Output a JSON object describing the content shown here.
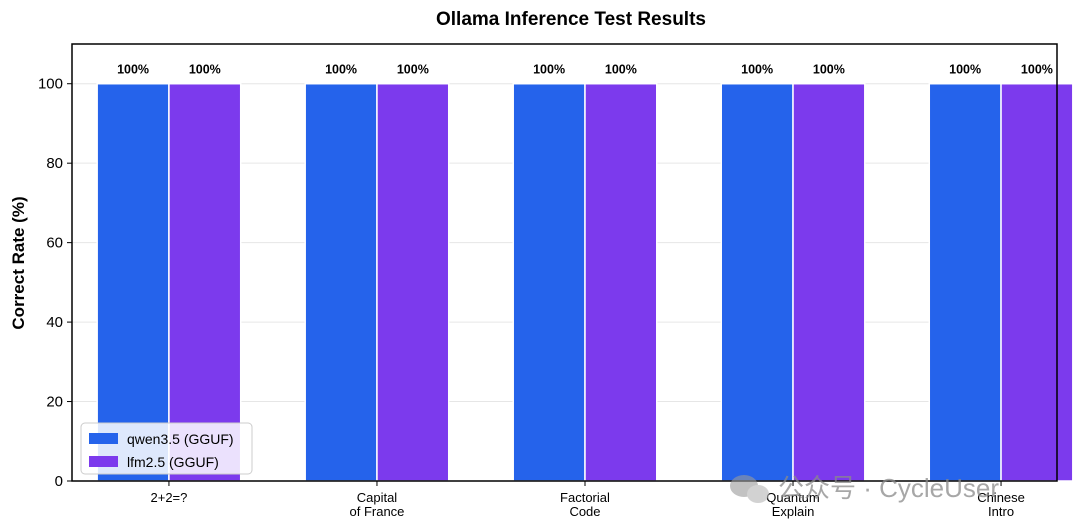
{
  "chart_data": {
    "type": "bar",
    "title": "Ollama Inference Test Results",
    "xlabel": "",
    "ylabel": "Correct Rate (%)",
    "ylim": [
      0,
      110
    ],
    "yticks": [
      0,
      20,
      40,
      60,
      80,
      100
    ],
    "grid": "horizontal",
    "legend_placement": "lower-left",
    "categories": [
      [
        "2+2=?"
      ],
      [
        "Capital",
        "of France"
      ],
      [
        "Factorial",
        "Code"
      ],
      [
        "Quantum",
        "Explain"
      ],
      [
        "Chinese",
        "Intro"
      ]
    ],
    "series": [
      {
        "name": "qwen3.5 (GGUF)",
        "color": "#2563eb",
        "values": [
          100,
          100,
          100,
          100,
          100
        ],
        "labels": [
          "100%",
          "100%",
          "100%",
          "100%",
          "100%"
        ]
      },
      {
        "name": "lfm2.5 (GGUF)",
        "color": "#7c3aed",
        "values": [
          100,
          100,
          100,
          100,
          100
        ],
        "labels": [
          "100%",
          "100%",
          "100%",
          "100%",
          "100%"
        ]
      }
    ]
  },
  "watermark": {
    "text": "公众号 · CycleUser",
    "icon": "wechat-icon"
  }
}
